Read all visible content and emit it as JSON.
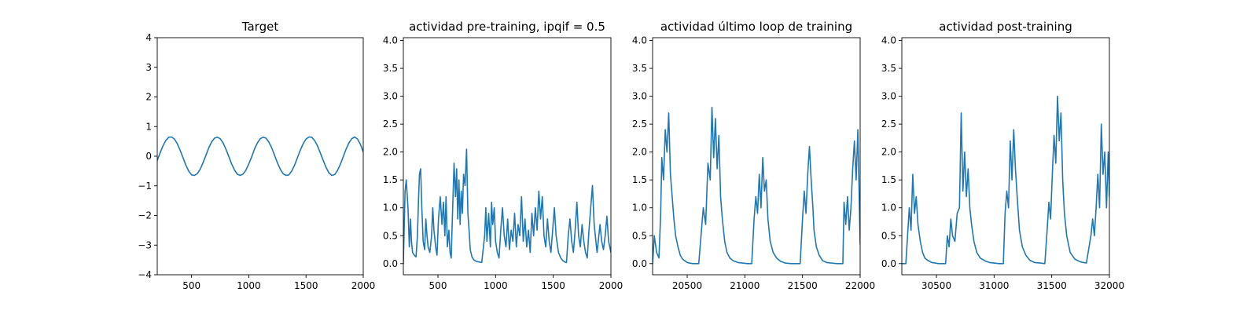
{
  "chart_data": [
    {
      "type": "line",
      "title": "Target",
      "xlim": [
        200,
        2000
      ],
      "ylim": [
        -4,
        4
      ],
      "xticks": [
        500,
        1000,
        1500,
        2000
      ],
      "xtick_labels": [
        "500",
        "1000",
        "1500",
        "2000"
      ],
      "yticks": [
        -4,
        -3,
        -2,
        -1,
        0,
        1,
        2,
        3,
        4
      ],
      "ytick_labels": [
        "−4",
        "−3",
        "−2",
        "−1",
        "0",
        "1",
        "2",
        "3",
        "4"
      ],
      "series": [
        {
          "color": "#1f77b4",
          "x": [
            200,
            225,
            250,
            275,
            300,
            325,
            350,
            375,
            400,
            425,
            450,
            475,
            500,
            525,
            550,
            575,
            600,
            625,
            650,
            675,
            700,
            725,
            750,
            775,
            800,
            825,
            850,
            875,
            900,
            925,
            950,
            975,
            1000,
            1025,
            1050,
            1075,
            1100,
            1125,
            1150,
            1175,
            1200,
            1225,
            1250,
            1275,
            1300,
            1325,
            1350,
            1375,
            1400,
            1425,
            1450,
            1475,
            1500,
            1525,
            1550,
            1575,
            1600,
            1625,
            1650,
            1675,
            1700,
            1725,
            1750,
            1775,
            1800,
            1825,
            1850,
            1875,
            1900,
            1925,
            1950,
            1975,
            2000
          ],
          "y": [
            -0.14,
            0.11,
            0.35,
            0.53,
            0.64,
            0.65,
            0.58,
            0.42,
            0.2,
            -0.05,
            -0.3,
            -0.5,
            -0.63,
            -0.65,
            -0.59,
            -0.44,
            -0.22,
            0.03,
            0.28,
            0.48,
            0.61,
            0.64,
            0.59,
            0.45,
            0.24,
            -0.01,
            -0.26,
            -0.47,
            -0.61,
            -0.65,
            -0.6,
            -0.47,
            -0.26,
            -0.02,
            0.24,
            0.45,
            0.59,
            0.64,
            0.61,
            0.48,
            0.28,
            0.03,
            -0.22,
            -0.44,
            -0.59,
            -0.65,
            -0.63,
            -0.5,
            -0.3,
            -0.05,
            0.2,
            0.42,
            0.58,
            0.65,
            0.64,
            0.53,
            0.35,
            0.11,
            -0.14,
            -0.38,
            -0.56,
            -0.65,
            -0.62,
            -0.48,
            -0.27,
            -0.02,
            0.24,
            0.45,
            0.59,
            0.65,
            0.58,
            0.4,
            0.14
          ]
        }
      ]
    },
    {
      "type": "line",
      "title": "actividad pre-training, ipqif = 0.5",
      "xlim": [
        200,
        2000
      ],
      "ylim": [
        -0.2,
        4.05
      ],
      "xticks": [
        500,
        1000,
        1500,
        2000
      ],
      "xtick_labels": [
        "500",
        "1000",
        "1500",
        "2000"
      ],
      "yticks": [
        0,
        0.5,
        1,
        1.5,
        2,
        2.5,
        3,
        3.5,
        4
      ],
      "ytick_labels": [
        "0.0",
        "0.5",
        "1.0",
        "1.5",
        "2.0",
        "2.5",
        "3.0",
        "3.5",
        "4.0"
      ],
      "series": [
        {
          "color": "#1f77b4",
          "x": [
            200,
            215,
            225,
            240,
            252,
            262,
            270,
            280,
            295,
            310,
            322,
            332,
            340,
            350,
            360,
            372,
            385,
            395,
            405,
            415,
            430,
            445,
            455,
            465,
            480,
            492,
            505,
            520,
            535,
            548,
            560,
            570,
            582,
            595,
            605,
            615,
            625,
            640,
            652,
            662,
            672,
            682,
            692,
            702,
            712,
            722,
            735,
            748,
            760,
            770,
            780,
            795,
            810,
            830,
            855,
            880,
            905,
            915,
            925,
            940,
            955,
            965,
            975,
            988,
            1000,
            1015,
            1030,
            1045,
            1060,
            1075,
            1090,
            1105,
            1120,
            1135,
            1150,
            1165,
            1180,
            1195,
            1210,
            1225,
            1240,
            1255,
            1270,
            1285,
            1300,
            1315,
            1330,
            1345,
            1360,
            1375,
            1390,
            1405,
            1420,
            1435,
            1450,
            1465,
            1480,
            1495,
            1510,
            1525,
            1545,
            1565,
            1585,
            1600,
            1615,
            1630,
            1645,
            1660,
            1675,
            1690,
            1705,
            1720,
            1735,
            1750,
            1765,
            1780,
            1795,
            1810,
            1825,
            1840,
            1855,
            1870,
            1880,
            1890,
            1905,
            1920,
            1935,
            1950,
            1965,
            1980,
            2000
          ],
          "y": [
            0.0,
            1.3,
            1.5,
            1.0,
            0.3,
            0.8,
            0.4,
            0.2,
            0.15,
            0.12,
            0.5,
            1.2,
            1.6,
            1.7,
            1.0,
            0.4,
            0.25,
            0.8,
            0.5,
            0.3,
            0.2,
            0.5,
            1.0,
            0.6,
            0.3,
            0.15,
            0.8,
            1.2,
            0.7,
            1.1,
            0.5,
            1.2,
            0.3,
            0.6,
            0.2,
            0.1,
            0.8,
            1.8,
            1.2,
            1.7,
            0.8,
            1.5,
            0.7,
            1.3,
            0.9,
            1.6,
            1.4,
            2.05,
            0.9,
            0.6,
            0.25,
            0.12,
            0.07,
            0.04,
            0.03,
            0.02,
            0.5,
            1.0,
            0.4,
            0.9,
            0.3,
            1.1,
            0.7,
            1.0,
            0.4,
            0.2,
            0.1,
            0.6,
            1.0,
            0.5,
            0.3,
            0.8,
            0.25,
            0.6,
            0.4,
            0.9,
            0.3,
            0.7,
            0.5,
            1.2,
            0.4,
            0.8,
            0.3,
            0.6,
            0.2,
            0.9,
            0.5,
            1.0,
            0.6,
            1.3,
            0.8,
            1.2,
            0.5,
            0.3,
            0.8,
            0.4,
            0.2,
            0.6,
            1.0,
            0.5,
            0.2,
            0.1,
            0.05,
            0.03,
            0.02,
            0.5,
            0.8,
            0.4,
            0.2,
            0.6,
            1.1,
            0.5,
            0.3,
            0.7,
            0.4,
            0.2,
            0.1,
            0.6,
            1.0,
            1.4,
            0.7,
            0.4,
            0.2,
            0.4,
            0.7,
            0.4,
            0.25,
            0.5,
            0.85,
            0.4,
            0.2
          ]
        }
      ]
    },
    {
      "type": "line",
      "title": "actividad último loop de training",
      "xlim": [
        20200,
        22000
      ],
      "ylim": [
        -0.2,
        4.05
      ],
      "xticks": [
        20500,
        21000,
        21500,
        22000
      ],
      "xtick_labels": [
        "20500",
        "21000",
        "21500",
        "22000"
      ],
      "yticks": [
        0,
        0.5,
        1,
        1.5,
        2,
        2.5,
        3,
        3.5,
        4
      ],
      "ytick_labels": [
        "0.0",
        "0.5",
        "1.0",
        "1.5",
        "2.0",
        "2.5",
        "3.0",
        "3.5",
        "4.0"
      ],
      "series": [
        {
          "color": "#1f77b4",
          "x": [
            20200,
            20215,
            20235,
            20255,
            20270,
            20280,
            20295,
            20310,
            20325,
            20340,
            20355,
            20370,
            20385,
            20400,
            20420,
            20440,
            20460,
            20480,
            20500,
            20520,
            20550,
            20580,
            20600,
            20620,
            20640,
            20660,
            20680,
            20700,
            20715,
            20730,
            20745,
            20760,
            20775,
            20790,
            20805,
            20825,
            20845,
            20870,
            20900,
            20940,
            20980,
            21020,
            21060,
            21080,
            21095,
            21110,
            21125,
            21140,
            21155,
            21170,
            21185,
            21200,
            21220,
            21245,
            21275,
            21310,
            21350,
            21400,
            21450,
            21480,
            21500,
            21515,
            21530,
            21545,
            21560,
            21575,
            21590,
            21600,
            21620,
            21645,
            21675,
            21710,
            21750,
            21800,
            21850,
            21860,
            21875,
            21890,
            21905,
            21920,
            21935,
            21950,
            21965,
            21980,
            22000
          ],
          "y": [
            0.0,
            0.5,
            0.2,
            0.1,
            0.9,
            1.9,
            1.5,
            2.4,
            2.0,
            2.7,
            1.6,
            1.2,
            0.8,
            0.5,
            0.3,
            0.15,
            0.08,
            0.05,
            0.02,
            0.01,
            0.0,
            0.0,
            0.0,
            0.5,
            1.0,
            0.7,
            1.8,
            1.5,
            2.8,
            1.9,
            2.6,
            1.7,
            2.3,
            1.2,
            0.8,
            0.4,
            0.2,
            0.1,
            0.05,
            0.02,
            0.01,
            0.0,
            0.0,
            0.8,
            1.2,
            0.9,
            1.6,
            1.0,
            1.9,
            1.3,
            1.5,
            0.8,
            0.4,
            0.2,
            0.1,
            0.04,
            0.01,
            0.0,
            0.0,
            0.0,
            0.8,
            1.3,
            0.9,
            1.6,
            2.1,
            1.5,
            1.0,
            0.6,
            0.3,
            0.15,
            0.05,
            0.02,
            0.01,
            0.0,
            0.0,
            1.1,
            0.7,
            1.2,
            0.6,
            1.0,
            1.7,
            2.2,
            1.5,
            2.4,
            0.35
          ]
        }
      ]
    },
    {
      "type": "line",
      "title": "actividad post-training",
      "xlim": [
        30200,
        32000
      ],
      "ylim": [
        -0.2,
        4.05
      ],
      "xticks": [
        30500,
        31000,
        31500,
        32000
      ],
      "xtick_labels": [
        "30500",
        "31000",
        "31500",
        "32000"
      ],
      "yticks": [
        0,
        0.5,
        1,
        1.5,
        2,
        2.5,
        3,
        3.5,
        4
      ],
      "ytick_labels": [
        "0.0",
        "0.5",
        "1.0",
        "1.5",
        "2.0",
        "2.5",
        "3.0",
        "3.5",
        "4.0"
      ],
      "series": [
        {
          "color": "#1f77b4",
          "x": [
            30200,
            30220,
            30235,
            30250,
            30265,
            30280,
            30295,
            30310,
            30325,
            30340,
            30360,
            30380,
            30400,
            30430,
            30460,
            30490,
            30520,
            30550,
            30580,
            30595,
            30610,
            30625,
            30640,
            30660,
            30680,
            30700,
            30715,
            30730,
            30745,
            30760,
            30775,
            30790,
            30805,
            30825,
            30850,
            30880,
            30920,
            30960,
            31000,
            31040,
            31080,
            31095,
            31110,
            31125,
            31140,
            31155,
            31170,
            31185,
            31200,
            31220,
            31245,
            31275,
            31310,
            31350,
            31400,
            31440,
            31460,
            31475,
            31490,
            31505,
            31520,
            31535,
            31550,
            31565,
            31580,
            31595,
            31610,
            31630,
            31660,
            31700,
            31750,
            31800,
            31840,
            31855,
            31870,
            31885,
            31900,
            31915,
            31930,
            31945,
            31960,
            31975,
            31990,
            32000
          ],
          "y": [
            0.0,
            0.0,
            0.0,
            0.5,
            1.0,
            0.6,
            1.6,
            0.9,
            1.2,
            0.7,
            0.4,
            0.2,
            0.1,
            0.05,
            0.02,
            0.01,
            0.0,
            0.0,
            0.0,
            0.5,
            0.3,
            0.8,
            0.5,
            0.4,
            0.9,
            1.0,
            2.7,
            1.3,
            2.0,
            1.2,
            1.7,
            1.0,
            0.7,
            0.4,
            0.2,
            0.1,
            0.05,
            0.02,
            0.01,
            0.0,
            0.0,
            0.9,
            1.3,
            1.0,
            2.2,
            1.5,
            2.4,
            1.7,
            1.2,
            0.6,
            0.3,
            0.15,
            0.06,
            0.02,
            0.01,
            0.0,
            0.6,
            1.1,
            0.8,
            1.6,
            2.3,
            1.8,
            3.0,
            2.2,
            2.7,
            1.5,
            0.9,
            0.5,
            0.2,
            0.08,
            0.03,
            0.01,
            0.5,
            0.8,
            0.5,
            1.0,
            1.6,
            1.0,
            2.5,
            1.6,
            2.0,
            1.0,
            2.0,
            1.2
          ]
        }
      ]
    }
  ]
}
